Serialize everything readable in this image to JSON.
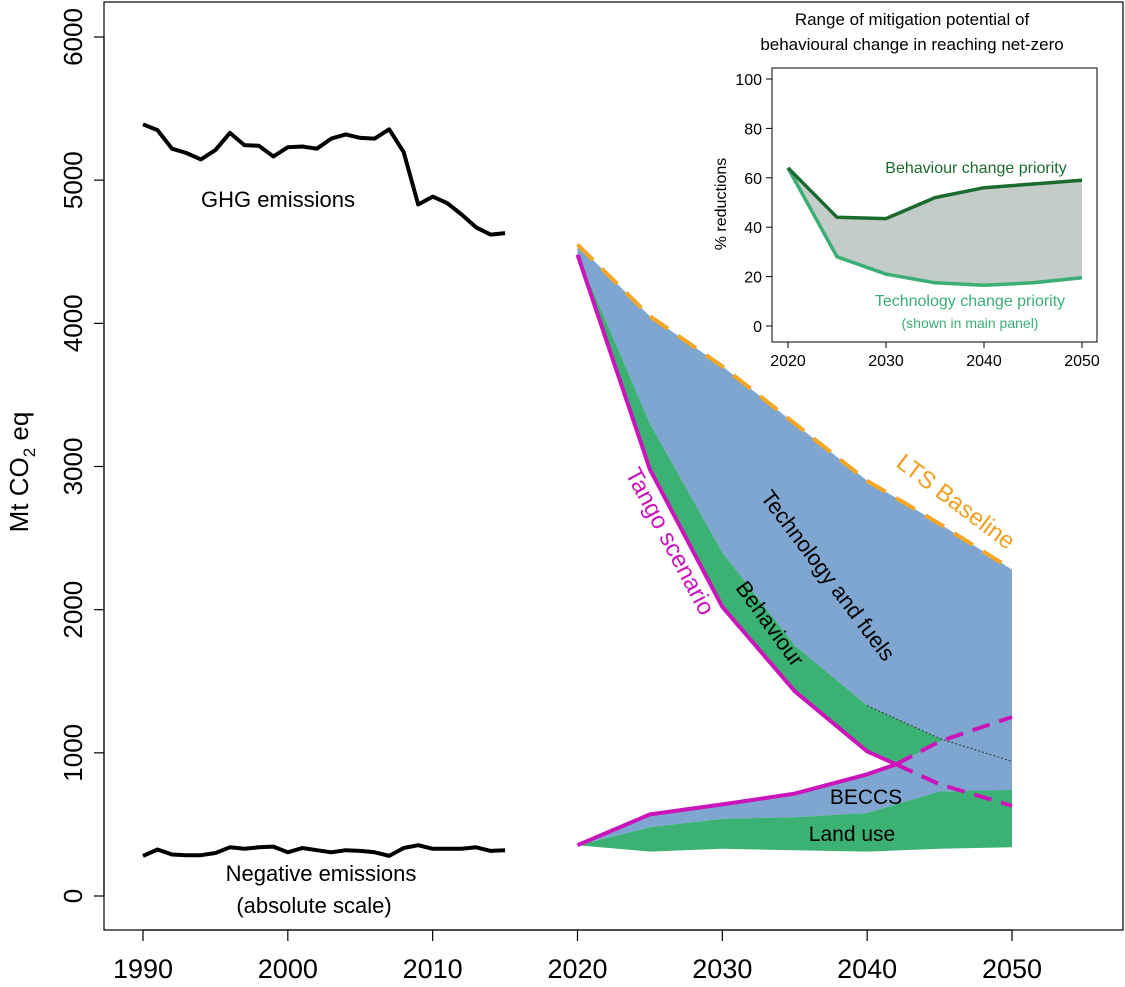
{
  "chart_data": [
    {
      "type": "area",
      "ylabel": "Mt CO",
      "ylabel_sub": "2",
      "ylabel_suffix": " eq",
      "xlim": [
        1985,
        2056
      ],
      "ylim": [
        -200,
        6200
      ],
      "xticks": [
        1990,
        2000,
        2010,
        2020,
        2030,
        2040,
        2050
      ],
      "yticks": [
        0,
        1000,
        2000,
        3000,
        4000,
        5000,
        6000
      ],
      "ghg_emissions": {
        "name": "GHG emissions",
        "color": "#000000",
        "x": [
          1990,
          1991,
          1992,
          1993,
          1994,
          1995,
          1996,
          1997,
          1998,
          1999,
          2000,
          2001,
          2002,
          2003,
          2004,
          2005,
          2006,
          2007,
          2008,
          2009,
          2010,
          2011,
          2012,
          2013,
          2014,
          2015
        ],
        "y": [
          5390,
          5350,
          5220,
          5190,
          5145,
          5210,
          5330,
          5245,
          5240,
          5165,
          5230,
          5235,
          5220,
          5290,
          5320,
          5295,
          5290,
          5355,
          5195,
          4830,
          4885,
          4840,
          4760,
          4670,
          4620,
          4630
        ]
      },
      "negative_emissions_hist": {
        "name": "Negative emissions",
        "name2": "(absolute scale)",
        "color": "#000000",
        "x": [
          1990,
          1991,
          1992,
          1993,
          1994,
          1995,
          1996,
          1997,
          1998,
          1999,
          2000,
          2001,
          2002,
          2003,
          2004,
          2005,
          2006,
          2007,
          2008,
          2009,
          2010,
          2011,
          2012,
          2013,
          2014,
          2015
        ],
        "y": [
          280,
          325,
          290,
          285,
          285,
          300,
          340,
          330,
          340,
          345,
          305,
          335,
          320,
          305,
          320,
          315,
          305,
          280,
          335,
          355,
          330,
          330,
          330,
          340,
          315,
          320
        ]
      },
      "lts_baseline": {
        "name": "LTS Baseline",
        "color": "#F5A623",
        "x": [
          2020,
          2025,
          2030,
          2035,
          2040,
          2045,
          2050
        ],
        "y": [
          4550,
          4050,
          3700,
          3300,
          2900,
          2600,
          2280
        ]
      },
      "behaviour_top": {
        "x": [
          2020,
          2025,
          2030,
          2035,
          2040,
          2045,
          2050
        ],
        "y": [
          4480,
          3300,
          2400,
          1750,
          1330,
          1100,
          940
        ]
      },
      "tango_scenario": {
        "name": "Tango scenario",
        "color": "#CC14BB",
        "x": [
          2020,
          2025,
          2030,
          2035,
          2040,
          2042
        ],
        "y": [
          4480,
          2980,
          2020,
          1430,
          1010,
          920
        ],
        "dashed_x": [
          2042,
          2045,
          2050
        ],
        "dashed_y": [
          920,
          780,
          630
        ]
      },
      "negative_scenario": {
        "color": "#CC14BB",
        "x": [
          2020,
          2025,
          2030,
          2035,
          2040,
          2042
        ],
        "y": [
          355,
          570,
          640,
          715,
          850,
          920
        ],
        "dashed_x": [
          2042,
          2045,
          2050
        ],
        "dashed_y": [
          920,
          1080,
          1250
        ]
      },
      "land_use_top": {
        "x": [
          2020,
          2025,
          2030,
          2035,
          2040,
          2045,
          2050
        ],
        "y": [
          355,
          480,
          540,
          550,
          580,
          730,
          740
        ]
      },
      "land_use_bottom": {
        "x": [
          2020,
          2025,
          2030,
          2035,
          2040,
          2045,
          2050
        ],
        "y": [
          355,
          310,
          330,
          320,
          310,
          330,
          340
        ]
      },
      "area_colors": {
        "technology": "#7EA6D0",
        "behaviour": "#3BB273",
        "land_use": "#3BB273",
        "beccs": "#7EA6D0"
      },
      "labels": {
        "ghg": "GHG emissions",
        "negative1": "Negative emissions",
        "negative2": "(absolute scale)",
        "lts": "LTS Baseline",
        "tango": "Tango scenario",
        "technology": "Technology and fuels",
        "behaviour": "Behaviour",
        "beccs": "BECCS",
        "land_use": "Land use"
      }
    },
    {
      "type": "area",
      "title": "Range of mitigation potential of",
      "title2": "behavioural change in reaching net-zero",
      "ylabel": "% reductions",
      "xlim": [
        2019,
        2051
      ],
      "ylim": [
        -3,
        103
      ],
      "xticks": [
        2020,
        2030,
        2040,
        2050
      ],
      "yticks": [
        0,
        20,
        40,
        60,
        80,
        100
      ],
      "series": [
        {
          "name": "Behaviour change priority",
          "color": "#1B6B2F",
          "x": [
            2020,
            2025,
            2030,
            2035,
            2040,
            2045,
            2050
          ],
          "values": [
            64,
            44,
            43.5,
            52,
            56,
            57.5,
            59
          ]
        },
        {
          "name": "Technology change priority",
          "subname": "(shown in main panel)",
          "color": "#3AAE74",
          "x": [
            2020,
            2025,
            2030,
            2035,
            2040,
            2045,
            2050
          ],
          "values": [
            64,
            28,
            21,
            17.5,
            16.5,
            17.5,
            19.5
          ]
        }
      ],
      "range_fill_color": "#C3CCC9"
    }
  ]
}
